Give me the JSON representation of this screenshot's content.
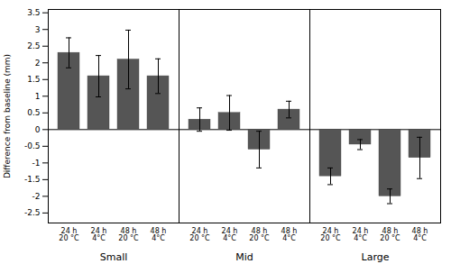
{
  "chart_data": {
    "type": "bar",
    "ylabel": "Difference from baseline (mm)",
    "groups": [
      "Small",
      "Mid",
      "Large"
    ],
    "categories": [
      "24 h 20 °C",
      "24 h 4°C",
      "48 h 20 °C",
      "48 h 4°C"
    ],
    "values": [
      [
        2.3,
        1.6,
        2.1,
        1.6
      ],
      [
        0.3,
        0.5,
        -0.6,
        0.6
      ],
      [
        -1.4,
        -0.45,
        -2.0,
        -0.85
      ]
    ],
    "errors": [
      [
        0.45,
        0.62,
        0.88,
        0.52
      ],
      [
        0.35,
        0.52,
        0.55,
        0.25
      ],
      [
        0.25,
        0.15,
        0.22,
        0.62
      ]
    ],
    "color": "#555555",
    "ylim": [
      -2.8,
      3.6
    ],
    "yticks": [
      -2.5,
      -2,
      -1.5,
      -1,
      -0.5,
      0,
      0.5,
      1,
      1.5,
      2,
      2.5,
      3,
      3.5
    ],
    "grid": false
  }
}
